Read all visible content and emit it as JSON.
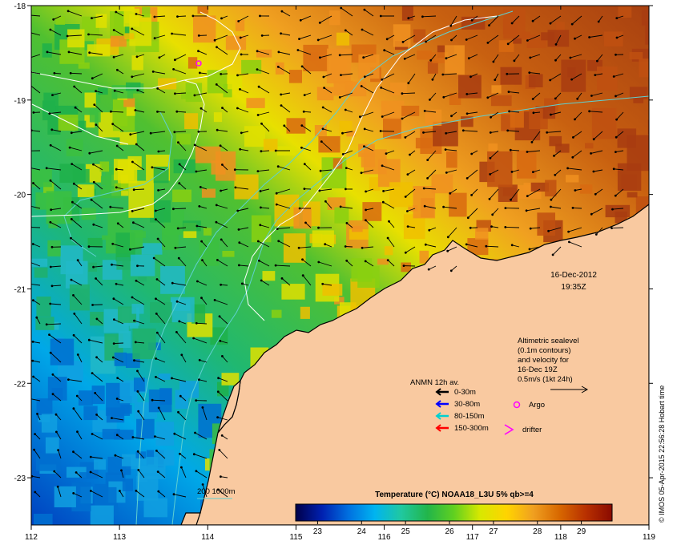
{
  "map": {
    "lon_ticks": [
      "112",
      "113",
      "114",
      "115",
      "116",
      "117",
      "118",
      "119"
    ],
    "lat_ticks": [
      "-18",
      "-19",
      "-20",
      "-21",
      "-22",
      "-23"
    ],
    "lon_range": [
      112,
      119
    ],
    "lat_range": [
      -23.5,
      -18
    ],
    "colors": {
      "land": "#f9c9a0",
      "contour": "#ffffff",
      "isobath": "#5fd0d0",
      "coast": "#000000"
    }
  },
  "datetime": {
    "date": "16-Dec-2012",
    "time": "19:35Z"
  },
  "altimetry_note": {
    "lines": [
      "Altimetric sealevel",
      "(0.1m contours)",
      "and velocity for",
      "16-Dec 19Z",
      "0.5m/s (1kt 24h)"
    ]
  },
  "anmn_legend": {
    "title": "ANMN 12h av.",
    "items": [
      {
        "label": "0-30m",
        "color": "#000000"
      },
      {
        "label": "30-80m",
        "color": "#0000ff"
      },
      {
        "label": "80-150m",
        "color": "#00d0d0"
      },
      {
        "label": "150-300m",
        "color": "#ff0000"
      }
    ]
  },
  "markers": {
    "argo": "Argo",
    "drifter": "drifter",
    "argo_color": "#ff00ff",
    "drifter_color": "#ff00ff"
  },
  "isobath_legend": {
    "label": "200  1000m"
  },
  "colorbar": {
    "title": "Temperature (°C) NOAA18_L3U 5% qb>=4",
    "ticks": [
      "23",
      "24",
      "25",
      "26",
      "27",
      "28",
      "29"
    ],
    "range": [
      22.5,
      29.7
    ],
    "stops": [
      "#00004a",
      "#0020b0",
      "#0070e0",
      "#00b4f0",
      "#20c8a0",
      "#22b54a",
      "#60d020",
      "#d8e800",
      "#ffd400",
      "#f0a020",
      "#d86800",
      "#b83000",
      "#8a0a00"
    ]
  },
  "credit": "© IMOS 05-Apr-2015 22:56:28 Hobart time"
}
